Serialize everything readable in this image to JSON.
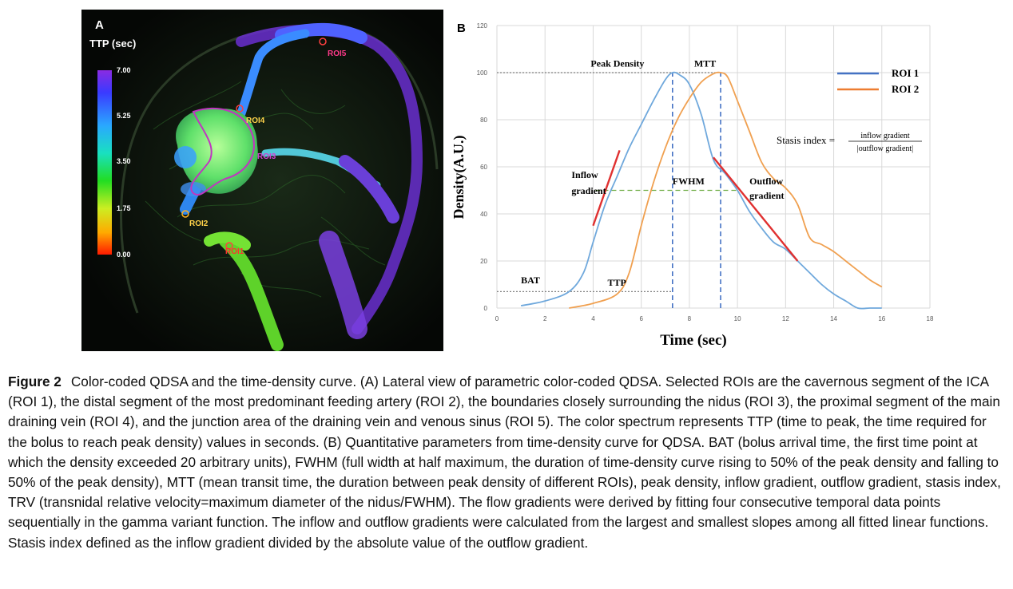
{
  "panel_a": {
    "letter": "A",
    "colorbar_title": "TTP (sec)",
    "colorbar_ticks": [
      "7.00",
      "5.25",
      "3.50",
      "1.75",
      "0.00"
    ],
    "roi_labels": [
      "ROI5",
      "ROI4",
      "ROI3",
      "ROI2",
      "ROI1"
    ]
  },
  "panel_b": {
    "letter": "B",
    "chart_data": {
      "type": "line",
      "xlabel": "Time (sec)",
      "ylabel": "Density(A.U.)",
      "xlim": [
        0,
        18
      ],
      "ylim": [
        0,
        120
      ],
      "x_ticks": [
        "0",
        "2",
        "4",
        "6",
        "8",
        "10",
        "12",
        "14",
        "16",
        "18"
      ],
      "y_ticks": [
        "0",
        "20",
        "40",
        "60",
        "80",
        "100",
        "120"
      ],
      "grid": true,
      "legend_position": "top-right",
      "series": [
        {
          "name": "ROI 1",
          "color": "#6fa8dc",
          "legend_color": "#4472c4",
          "points": [
            [
              1,
              1
            ],
            [
              2,
              3
            ],
            [
              3,
              7
            ],
            [
              3.6,
              15
            ],
            [
              4,
              28
            ],
            [
              4.5,
              44
            ],
            [
              5,
              56
            ],
            [
              5.5,
              68
            ],
            [
              6,
              78
            ],
            [
              6.5,
              88
            ],
            [
              7,
              97
            ],
            [
              7.3,
              100
            ],
            [
              7.6,
              99
            ],
            [
              8,
              95
            ],
            [
              8.5,
              82
            ],
            [
              9,
              63
            ],
            [
              9.5,
              57
            ],
            [
              10,
              50
            ],
            [
              10.5,
              41
            ],
            [
              11,
              34
            ],
            [
              11.5,
              28
            ],
            [
              12,
              25
            ],
            [
              12.5,
              20
            ],
            [
              13,
              15
            ],
            [
              13.5,
              10
            ],
            [
              14,
              6
            ],
            [
              14.5,
              3
            ],
            [
              15,
              0
            ],
            [
              15.5,
              0
            ],
            [
              16,
              0
            ]
          ]
        },
        {
          "name": "ROI 2",
          "color": "#f0a050",
          "legend_color": "#ed7d31",
          "points": [
            [
              3,
              0
            ],
            [
              4,
              2
            ],
            [
              5,
              6
            ],
            [
              5.5,
              15
            ],
            [
              6,
              35
            ],
            [
              6.5,
              53
            ],
            [
              7,
              68
            ],
            [
              7.5,
              80
            ],
            [
              8,
              89
            ],
            [
              8.5,
              96
            ],
            [
              9,
              99.5
            ],
            [
              9.3,
              100
            ],
            [
              9.6,
              98
            ],
            [
              10,
              88
            ],
            [
              10.5,
              75
            ],
            [
              11,
              62
            ],
            [
              11.5,
              55
            ],
            [
              12,
              51
            ],
            [
              12.5,
              44
            ],
            [
              13,
              30
            ],
            [
              13.5,
              27
            ],
            [
              14,
              24
            ],
            [
              14.5,
              20
            ],
            [
              15,
              16
            ],
            [
              15.5,
              12
            ],
            [
              16,
              9
            ]
          ]
        }
      ],
      "reference_lines": [
        {
          "type": "horizontal",
          "y": 100,
          "x_from": 0,
          "x_to": 9.3,
          "color": "#7f7f7f",
          "style": "dotted"
        },
        {
          "type": "horizontal",
          "y": 7,
          "x_from": 0,
          "x_to": 7.3,
          "color": "#7f7f7f",
          "style": "dotted"
        },
        {
          "type": "horizontal",
          "y": 50,
          "x_from": 4.1,
          "x_to": 10,
          "color": "#70ad47",
          "style": "dashed"
        },
        {
          "type": "vertical",
          "x": 7.3,
          "y_from": 0,
          "y_to": 100,
          "color": "#4472c4",
          "style": "dashed"
        },
        {
          "type": "vertical",
          "x": 9.3,
          "y_from": 0,
          "y_to": 100,
          "color": "#4472c4",
          "style": "dashed"
        }
      ],
      "gradient_lines": [
        {
          "from": [
            4,
            35
          ],
          "to": [
            5.1,
            67
          ],
          "color": "#e03030"
        },
        {
          "from": [
            9,
            64
          ],
          "to": [
            12.5,
            20
          ],
          "color": "#e03030"
        }
      ],
      "annotations": [
        {
          "text": "Peak Density",
          "x": 3.9,
          "y": 102.5
        },
        {
          "text": "MTT",
          "x": 8.2,
          "y": 102.5
        },
        {
          "text": "Inflow",
          "x": 3.1,
          "y": 55.2
        },
        {
          "text": "gradient",
          "x": 3.1,
          "y": 48.5
        },
        {
          "text": "FWHM",
          "x": 7.3,
          "y": 52.5
        },
        {
          "text": "Outflow",
          "x": 10.5,
          "y": 52.5
        },
        {
          "text": "gradient",
          "x": 10.5,
          "y": 46.5
        },
        {
          "text": "BAT",
          "x": 1.0,
          "y": 10.5
        },
        {
          "text": "TTP",
          "x": 4.6,
          "y": 9.5
        }
      ],
      "formula": {
        "left": "Stasis index =",
        "numerator": "inflow gradient",
        "denominator": "|outflow gradient|"
      }
    }
  },
  "caption": {
    "label": "Figure 2",
    "text": "Color-coded QDSA and the time-density curve. (A) Lateral view of parametric color-coded QDSA. Selected ROIs are the cavernous segment of the ICA (ROI 1), the distal segment of the most predominant feeding artery (ROI 2), the boundaries closely surrounding the nidus (ROI 3), the proximal segment of the main draining vein (ROI 4), and the junction area of the draining vein and venous sinus (ROI 5). The color spectrum represents TTP (time to peak, the time required for the bolus to reach peak density) values in seconds. (B) Quantitative parameters from time-density curve for QDSA. BAT (bolus arrival time, the first time point at which the density exceeded 20 arbitrary units), FWHM (full width at half maximum, the duration of time-density curve rising to 50% of the peak density and falling to 50% of the peak density), MTT (mean transit time, the duration between peak density of different ROIs), peak density, inflow gradient, outflow gradient, stasis index, TRV (transnidal relative velocity=maximum diameter of the nidus/FWHM). The flow gradients were derived by fitting four consecutive temporal data points sequentially in the gamma variant function. The inflow and outflow gradients were calculated from the largest and smallest slopes among all fitted linear functions. Stasis index defined as the inflow gradient divided by the absolute value of the outflow gradient."
  }
}
